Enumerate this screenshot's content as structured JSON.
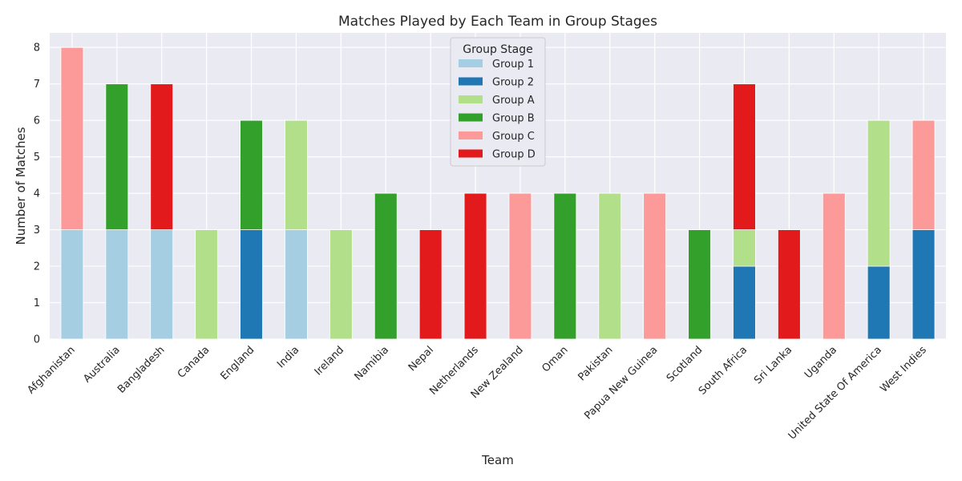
{
  "chart_data": {
    "type": "bar",
    "stacked": true,
    "title": "Matches Played by Each Team in Group Stages",
    "xlabel": "Team",
    "ylabel": "Number of Matches",
    "ylim": [
      0,
      8.4
    ],
    "yticks": [
      "0",
      "1",
      "2",
      "3",
      "4",
      "5",
      "6",
      "7",
      "8"
    ],
    "grid": true,
    "legend": {
      "title": "Group Stage",
      "position": "top-center"
    },
    "categories": [
      "Afghanistan",
      "Australia",
      "Bangladesh",
      "Canada",
      "England",
      "India",
      "Ireland",
      "Namibia",
      "Nepal",
      "Netherlands",
      "New Zealand",
      "Oman",
      "Pakistan",
      "Papua New Guinea",
      "Scotland",
      "South Africa",
      "Sri Lanka",
      "Uganda",
      "United State Of America",
      "West Indies"
    ],
    "series": [
      {
        "name": "Group 1",
        "color": "#a6cee3",
        "values": [
          3,
          3,
          3,
          0,
          0,
          3,
          0,
          0,
          0,
          0,
          0,
          0,
          0,
          0,
          0,
          0,
          0,
          0,
          0,
          0
        ]
      },
      {
        "name": "Group 2",
        "color": "#1f78b4",
        "values": [
          0,
          0,
          0,
          0,
          3,
          0,
          0,
          0,
          0,
          0,
          0,
          0,
          0,
          0,
          0,
          2,
          0,
          0,
          2,
          3
        ]
      },
      {
        "name": "Group A",
        "color": "#b2df8a",
        "values": [
          0,
          0,
          0,
          3,
          0,
          3,
          3,
          0,
          0,
          0,
          0,
          0,
          4,
          0,
          0,
          1,
          0,
          0,
          4,
          0
        ]
      },
      {
        "name": "Group B",
        "color": "#33a02c",
        "values": [
          0,
          4,
          0,
          0,
          3,
          0,
          0,
          4,
          0,
          0,
          0,
          4,
          0,
          0,
          3,
          0,
          0,
          0,
          0,
          0
        ]
      },
      {
        "name": "Group C",
        "color": "#fb9a99",
        "values": [
          5,
          0,
          0,
          0,
          0,
          0,
          0,
          0,
          0,
          0,
          4,
          0,
          0,
          4,
          0,
          0,
          0,
          4,
          0,
          3
        ]
      },
      {
        "name": "Group D",
        "color": "#e31a1c",
        "values": [
          0,
          0,
          4,
          0,
          0,
          0,
          0,
          0,
          3,
          4,
          0,
          0,
          0,
          0,
          0,
          4,
          3,
          0,
          0,
          0
        ]
      }
    ]
  }
}
